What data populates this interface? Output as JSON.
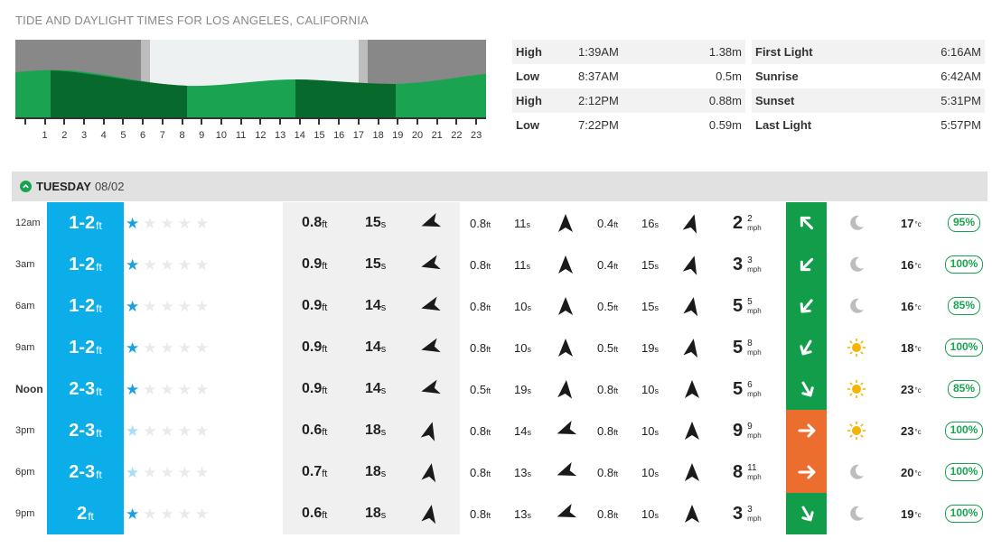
{
  "page": {
    "title": "TIDE AND DAYLIGHT TIMES FOR LOS ANGELES, CALIFORNIA"
  },
  "tide_chart": {
    "hour_labels": [
      "1",
      "2",
      "3",
      "4",
      "5",
      "6",
      "7",
      "8",
      "9",
      "10",
      "11",
      "12",
      "13",
      "14",
      "15",
      "16",
      "17",
      "18",
      "19",
      "20",
      "21",
      "22",
      "23"
    ],
    "colors": {
      "dark_night": "#888888",
      "daylight": "#eef1f1",
      "water_light": "#1aa350",
      "water_dark": "#07692c"
    }
  },
  "tides": [
    {
      "type": "High",
      "time": "1:39AM",
      "height": "1.38m"
    },
    {
      "type": "Low",
      "time": "8:37AM",
      "height": "0.5m"
    },
    {
      "type": "High",
      "time": "2:12PM",
      "height": "0.88m"
    },
    {
      "type": "Low",
      "time": "7:22PM",
      "height": "0.59m"
    }
  ],
  "daylight": [
    {
      "label": "First Light",
      "time": "6:16AM"
    },
    {
      "label": "Sunrise",
      "time": "6:42AM"
    },
    {
      "label": "Sunset",
      "time": "5:31PM"
    },
    {
      "label": "Last Light",
      "time": "5:57PM"
    }
  ],
  "day": {
    "name": "TUESDAY",
    "date": "08/02"
  },
  "units": {
    "ft": "ft",
    "s": "s",
    "mph": "mph",
    "temp": "°c"
  },
  "forecast": [
    {
      "time": "12am",
      "surf": "1-2",
      "stars_on": 1,
      "p_ht": "0.8",
      "p_per": "15",
      "s2_ht": "0.8",
      "s2_per": "11",
      "s3_ht": "0.4",
      "s3_per": "16",
      "wind": "2",
      "gust": "2",
      "wind_color": "green",
      "wind_icon": "arrow-icon",
      "weather": "moon-icon",
      "temp": "17",
      "prob": "95%"
    },
    {
      "time": "3am",
      "surf": "1-2",
      "stars_on": 1,
      "p_ht": "0.9",
      "p_per": "15",
      "s2_ht": "0.8",
      "s2_per": "11",
      "s3_ht": "0.4",
      "s3_per": "15",
      "wind": "3",
      "gust": "3",
      "wind_color": "green",
      "wind_icon": "arrow-icon",
      "weather": "moon-icon",
      "temp": "16",
      "prob": "100%"
    },
    {
      "time": "6am",
      "surf": "1-2",
      "stars_on": 1,
      "p_ht": "0.9",
      "p_per": "14",
      "s2_ht": "0.8",
      "s2_per": "10",
      "s3_ht": "0.5",
      "s3_per": "15",
      "wind": "5",
      "gust": "5",
      "wind_color": "green",
      "wind_icon": "arrow-icon",
      "weather": "moon-icon",
      "temp": "16",
      "prob": "85%"
    },
    {
      "time": "9am",
      "surf": "1-2",
      "stars_on": 1,
      "p_ht": "0.9",
      "p_per": "14",
      "s2_ht": "0.8",
      "s2_per": "10",
      "s3_ht": "0.5",
      "s3_per": "19",
      "wind": "5",
      "gust": "8",
      "wind_color": "green",
      "wind_icon": "arrow-icon",
      "weather": "sun-icon",
      "temp": "18",
      "prob": "100%"
    },
    {
      "time": "Noon",
      "surf": "2-3",
      "stars_on": 1,
      "p_ht": "0.9",
      "p_per": "14",
      "s2_ht": "0.5",
      "s2_per": "19",
      "s3_ht": "0.8",
      "s3_per": "10",
      "wind": "5",
      "gust": "6",
      "wind_color": "green",
      "wind_icon": "arrow-icon",
      "weather": "sun-icon",
      "temp": "23",
      "prob": "85%"
    },
    {
      "time": "3pm",
      "surf": "2-3",
      "stars_on": 1,
      "p_ht": "0.6",
      "p_per": "18",
      "s2_ht": "0.8",
      "s2_per": "14",
      "s3_ht": "0.8",
      "s3_per": "10",
      "wind": "9",
      "gust": "9",
      "wind_color": "orange",
      "wind_icon": "arrow-icon",
      "weather": "sun-icon",
      "temp": "23",
      "prob": "100%"
    },
    {
      "time": "6pm",
      "surf": "2-3",
      "stars_on": 1,
      "p_ht": "0.7",
      "p_per": "18",
      "s2_ht": "0.8",
      "s2_per": "13",
      "s3_ht": "0.8",
      "s3_per": "10",
      "wind": "8",
      "gust": "11",
      "wind_color": "orange",
      "wind_icon": "arrow-icon",
      "weather": "moon-icon",
      "temp": "20",
      "prob": "100%"
    },
    {
      "time": "9pm",
      "surf": "2",
      "stars_on": 1,
      "p_ht": "0.6",
      "p_per": "18",
      "s2_ht": "0.8",
      "s2_per": "13",
      "s3_ht": "0.8",
      "s3_per": "10",
      "wind": "3",
      "gust": "3",
      "wind_color": "green",
      "wind_icon": "arrow-icon",
      "weather": "moon-icon",
      "temp": "19",
      "prob": "100%"
    }
  ]
}
